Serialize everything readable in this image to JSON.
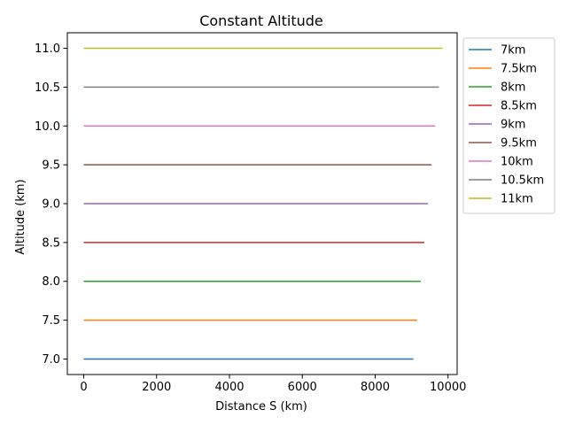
{
  "chart_data": {
    "type": "line",
    "title": "Constant Altitude",
    "xlabel": "Distance S (km)",
    "ylabel": "Altitude (km)",
    "xlim": [
      -450,
      10250
    ],
    "ylim": [
      6.8,
      11.2
    ],
    "xticks": [
      0,
      2000,
      4000,
      6000,
      8000,
      10000
    ],
    "xtick_labels": [
      "0",
      "2000",
      "4000",
      "6000",
      "8000",
      "10000"
    ],
    "yticks": [
      7.0,
      7.5,
      8.0,
      8.5,
      9.0,
      9.5,
      10.0,
      10.5,
      11.0
    ],
    "ytick_labels": [
      "7.0",
      "7.5",
      "8.0",
      "8.5",
      "9.0",
      "9.5",
      "10.0",
      "10.5",
      "11.0"
    ],
    "grid": false,
    "legend_position": "outside-upper-right",
    "series": [
      {
        "name": "7km",
        "color": "#1f77b4",
        "x": [
          0,
          9050
        ],
        "y": [
          7.0,
          7.0
        ]
      },
      {
        "name": "7.5km",
        "color": "#ff7f0e",
        "x": [
          0,
          9150
        ],
        "y": [
          7.5,
          7.5
        ]
      },
      {
        "name": "8km",
        "color": "#2ca02c",
        "x": [
          0,
          9250
        ],
        "y": [
          8.0,
          8.0
        ]
      },
      {
        "name": "8.5km",
        "color": "#d62728",
        "x": [
          0,
          9350
        ],
        "y": [
          8.5,
          8.5
        ]
      },
      {
        "name": "9km",
        "color": "#9467bd",
        "x": [
          0,
          9450
        ],
        "y": [
          9.0,
          9.0
        ]
      },
      {
        "name": "9.5km",
        "color": "#8c564b",
        "x": [
          0,
          9550
        ],
        "y": [
          9.5,
          9.5
        ]
      },
      {
        "name": "10km",
        "color": "#e377c2",
        "x": [
          0,
          9650
        ],
        "y": [
          10.0,
          10.0
        ]
      },
      {
        "name": "10.5km",
        "color": "#7f7f7f",
        "x": [
          0,
          9750
        ],
        "y": [
          10.5,
          10.5
        ]
      },
      {
        "name": "11km",
        "color": "#bcbd22",
        "x": [
          0,
          9850
        ],
        "y": [
          11.0,
          11.0
        ]
      }
    ]
  }
}
